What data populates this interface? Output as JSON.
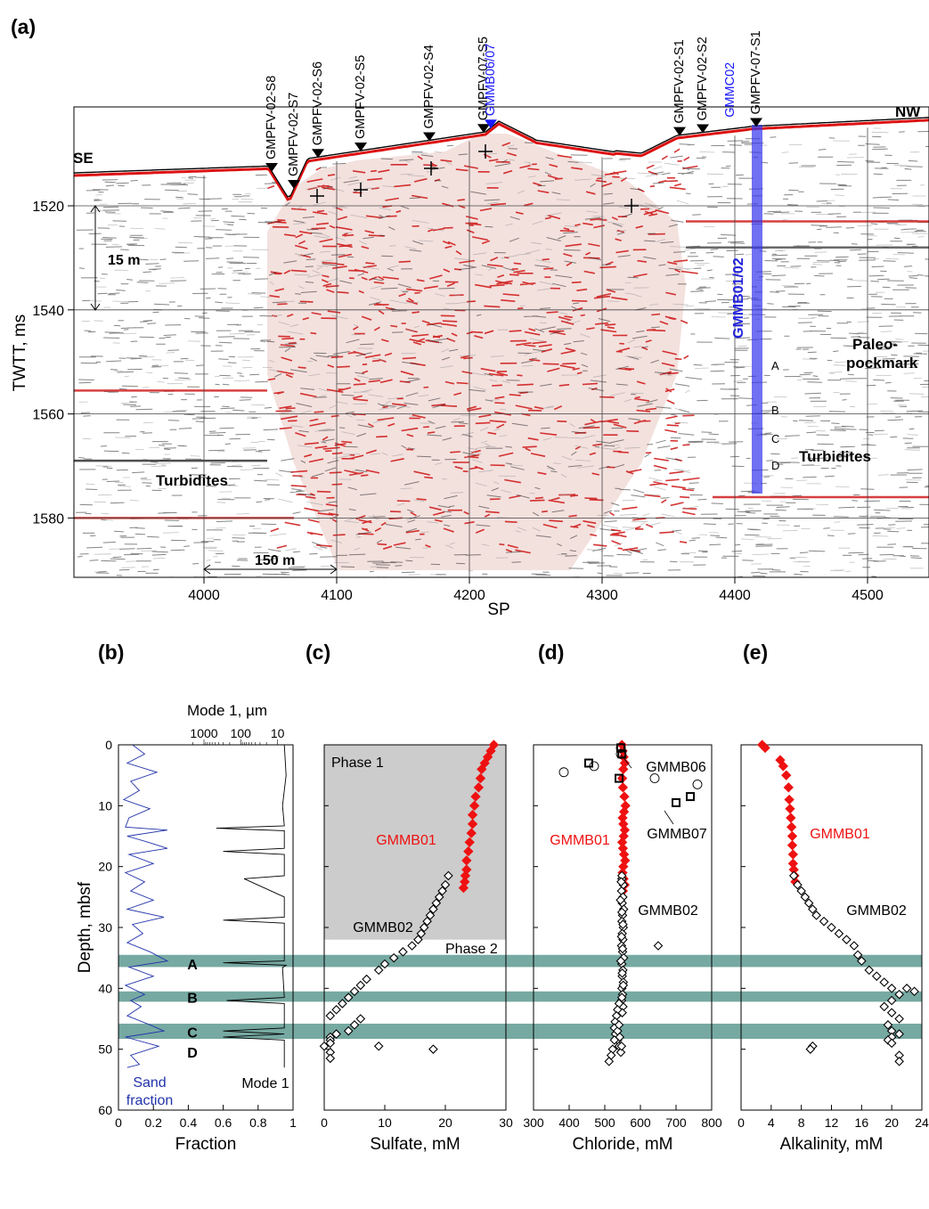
{
  "panels": {
    "a": "(a)",
    "b": "(b)",
    "c": "(c)",
    "d": "(d)",
    "e": "(e)"
  },
  "section": {
    "ylabel": "TWTT, ms",
    "xlabel": "SP",
    "yticks": [
      "1520",
      "1540",
      "1560",
      "1580"
    ],
    "xticks": [
      "4000",
      "4100",
      "4200",
      "4300",
      "4400",
      "4500"
    ],
    "left_label": "SE",
    "right_label": "NW",
    "scale_v": "15 m",
    "scale_h": "150 m",
    "turbidites_left": "Turbidites",
    "turbidites_right": "Turbidites",
    "paleo_1": "Paleo-",
    "paleo_2": "pockmark",
    "core_label": "GMMB01/02",
    "core_color": "#3333ee",
    "horizons": [
      "A",
      "B",
      "C",
      "D"
    ],
    "stations": [
      {
        "name": "GMPFV-02-S8",
        "color": "#000000"
      },
      {
        "name": "GMPFV-02-S7",
        "color": "#000000"
      },
      {
        "name": "GMPFV-02-S6",
        "color": "#000000"
      },
      {
        "name": "GMPFV-02-S5",
        "color": "#000000"
      },
      {
        "name": "GMPFV-02-S4",
        "color": "#000000"
      },
      {
        "name": "GMPFV-07-S5",
        "color": "#000000"
      },
      {
        "name": "GMMB06/07",
        "color": "#1a1aff"
      },
      {
        "name": "GMPFV-02-S1",
        "color": "#000000"
      },
      {
        "name": "GMPFV-02-S2",
        "color": "#000000"
      },
      {
        "name": "GMMC02",
        "color": "#1a1aff"
      },
      {
        "name": "GMPFV-07-S1",
        "color": "#000000"
      }
    ]
  },
  "labels": {
    "depth_axis": "Depth, mbsf",
    "mode_axis": "Mode 1, µm",
    "mode_ticks": [
      "1000",
      "100",
      "10"
    ],
    "sand1": "Sand",
    "sand2": "fraction",
    "mode1": "Mode 1",
    "phase1": "Phase 1",
    "phase2": "Phase 2",
    "gmmb01": "GMMB01",
    "gmmb02": "GMMB02",
    "gmmb06": "GMMB06",
    "gmmb07": "GMMB07",
    "bands": [
      "A",
      "B",
      "C",
      "D"
    ]
  },
  "colors": {
    "red": "#ee1111",
    "band": "#5e9a92",
    "phase1_fill": "#cccccc",
    "sand_line": "#2233aa"
  },
  "chart_data": [
    {
      "type": "line",
      "panel": "b",
      "xlabel": "Fraction",
      "ylabel": "Depth, mbsf",
      "xlim": [
        0,
        1
      ],
      "ylim": [
        60,
        0
      ],
      "xticks": [
        "0",
        "0.2",
        "0.4",
        "0.6",
        "0.8",
        "1"
      ],
      "yticks": [
        "0",
        "10",
        "20",
        "30",
        "40",
        "50",
        "60"
      ],
      "series": [
        {
          "name": "Sand fraction",
          "depth": [
            0,
            1.5,
            3,
            4.5,
            6,
            7.5,
            9,
            10.5,
            12,
            13.5,
            14,
            15,
            16,
            17,
            18,
            19.5,
            21,
            22.5,
            24,
            25.5,
            27,
            28.3,
            29.5,
            31,
            32.5,
            34,
            35.5,
            36.5,
            38,
            39.5,
            41,
            42,
            43,
            44.5,
            46,
            47,
            48,
            49.5,
            51,
            52.5,
            53
          ],
          "values": [
            0.08,
            0.15,
            0.05,
            0.22,
            0.07,
            0.12,
            0.03,
            0.18,
            0.06,
            0.04,
            0.28,
            0.05,
            0.17,
            0.28,
            0.06,
            0.2,
            0.04,
            0.15,
            0.07,
            0.2,
            0.05,
            0.26,
            0.08,
            0.14,
            0.05,
            0.18,
            0.28,
            0.06,
            0.2,
            0.04,
            0.15,
            0.07,
            0.13,
            0.05,
            0.18,
            0.26,
            0.04,
            0.23,
            0.07,
            0.12,
            0.05
          ]
        },
        {
          "name": "Mode 1",
          "depth": [
            0,
            5,
            10,
            13.3,
            13.7,
            14.1,
            17,
            17.5,
            18,
            21.5,
            22,
            25,
            28.3,
            28.8,
            29.3,
            35.5,
            35.8,
            36.2,
            36.6,
            41.5,
            42,
            42.5,
            46.5,
            47,
            47.5,
            48,
            48.5,
            53
          ],
          "values": [
            0.95,
            0.96,
            0.94,
            0.95,
            0.56,
            0.95,
            0.95,
            0.6,
            0.95,
            0.95,
            0.72,
            0.95,
            0.95,
            0.6,
            0.95,
            0.95,
            0.6,
            0.96,
            0.94,
            0.95,
            0.62,
            0.95,
            0.95,
            0.6,
            0.95,
            0.6,
            0.95,
            0.95
          ]
        }
      ]
    },
    {
      "type": "scatter",
      "panel": "c",
      "xlabel": "Sulfate, mM",
      "xlim": [
        0,
        30
      ],
      "ylim": [
        60,
        0
      ],
      "xticks": [
        "0",
        "10",
        "20",
        "30"
      ],
      "series": [
        {
          "name": "GMMB01",
          "x": [
            28,
            27.5,
            27,
            26.5,
            26,
            25.8,
            25.5,
            25,
            24.8,
            24.5,
            24.5,
            24.3,
            24,
            23.8,
            23.5,
            23.5,
            23.3,
            23.2,
            23
          ],
          "depth": [
            0,
            1,
            2,
            3,
            4,
            5.5,
            7,
            8.5,
            10,
            11.5,
            13,
            14.5,
            16,
            17.5,
            19,
            20.5,
            21.5,
            22.5,
            23.5
          ]
        },
        {
          "name": "GMMB02",
          "x": [
            20.5,
            20,
            19.5,
            19,
            18.5,
            18,
            17.5,
            17,
            16.5,
            16,
            15.5,
            14.5,
            13,
            11.5,
            10,
            9,
            7,
            6,
            5,
            4,
            3,
            2,
            1,
            6,
            5,
            4,
            2,
            1,
            1,
            1,
            0,
            1,
            1,
            9,
            18
          ],
          "depth": [
            21.5,
            23,
            24,
            25,
            26,
            27,
            28,
            29,
            30,
            31,
            32,
            33,
            34,
            35,
            36,
            37,
            38.5,
            39.5,
            40.5,
            41.5,
            42.5,
            43.5,
            44.5,
            45,
            46,
            47,
            47.5,
            48,
            48.5,
            49,
            49.5,
            50.5,
            51.5,
            49.5,
            50
          ]
        }
      ]
    },
    {
      "type": "scatter",
      "panel": "d",
      "xlabel": "Chloride, mM",
      "xlim": [
        300,
        800
      ],
      "ylim": [
        60,
        0
      ],
      "xticks": [
        "300",
        "400",
        "500",
        "600",
        "700",
        "800"
      ],
      "series": [
        {
          "name": "GMMB01",
          "x": [
            548,
            550,
            553,
            556,
            552,
            549,
            551,
            555,
            558,
            554,
            550,
            552,
            556,
            553,
            549,
            551,
            554,
            557,
            552,
            550,
            553,
            556,
            551
          ],
          "depth": [
            0,
            1,
            2,
            3,
            4,
            5.5,
            7,
            8.5,
            10,
            11,
            12,
            13,
            14,
            15,
            16,
            17,
            18,
            19,
            20,
            21,
            22,
            23,
            24
          ]
        },
        {
          "name": "GMMB02",
          "x": [
            548,
            552,
            547,
            551,
            549,
            553,
            550,
            548,
            552,
            549,
            551,
            547,
            550,
            553,
            548,
            551,
            549,
            552,
            548,
            550,
            547,
            551,
            549,
            548,
            546,
            544,
            548,
            551,
            547,
            550,
            545,
            549,
            552,
            548,
            540,
            536,
            533,
            529,
            527,
            530,
            536,
            540,
            545,
            536,
            542,
            547,
            527,
            522,
            518,
            512,
            540,
            650
          ],
          "depth": [
            22,
            23,
            24,
            25,
            26,
            27,
            28,
            29,
            30,
            31,
            32,
            33,
            34,
            35,
            36,
            37,
            38,
            39,
            40,
            41,
            42,
            43,
            44,
            21.5,
            22.5,
            25.5,
            27.5,
            29.5,
            31.5,
            33.5,
            35.5,
            37.5,
            39.5,
            41.5,
            42.5,
            43.5,
            44.5,
            45.5,
            46.5,
            47.5,
            48.5,
            49.5,
            50.5,
            47,
            48,
            49.5,
            48.5,
            50,
            51,
            52,
            46,
            33
          ]
        },
        {
          "name": "GMMB06",
          "x": [
            385,
            470,
            545,
            545,
            640,
            760
          ],
          "depth": [
            4.5,
            3.5,
            0.5,
            1.5,
            5.5,
            6.5
          ]
        },
        {
          "name": "GMMB07",
          "x": [
            455,
            545,
            548,
            540,
            700,
            740
          ],
          "depth": [
            3,
            0.5,
            1.5,
            5.5,
            9.5,
            8.5
          ]
        }
      ]
    },
    {
      "type": "scatter",
      "panel": "e",
      "xlabel": "Alkalinity, mM",
      "xlim": [
        0,
        24
      ],
      "ylim": [
        60,
        0
      ],
      "xticks": [
        "0",
        "4",
        "8",
        "12",
        "16",
        "20",
        "24"
      ],
      "series": [
        {
          "name": "GMMB01",
          "x": [
            2.8,
            3.2,
            5.2,
            5.6,
            6,
            6.3,
            6.4,
            6.5,
            6.6,
            6.7,
            6.8,
            6.8,
            6.9,
            6.9,
            7,
            7.1,
            7.2
          ],
          "depth": [
            0,
            0.5,
            2.5,
            3.5,
            5,
            7,
            9,
            10.5,
            12,
            13.5,
            15,
            16.5,
            18,
            19.5,
            20.5,
            21.5,
            22.5
          ]
        },
        {
          "name": "GMMB02",
          "x": [
            7,
            7.5,
            8,
            8.5,
            9,
            9.5,
            10,
            11,
            12,
            13,
            14,
            15,
            15.5,
            16,
            17,
            18,
            19,
            20,
            21,
            22,
            23,
            20,
            19,
            20,
            21,
            19.5,
            20,
            21,
            20,
            19.5,
            20,
            9.5,
            9.2,
            21,
            21
          ],
          "depth": [
            21.5,
            23,
            24,
            25,
            26,
            27,
            28,
            29,
            30,
            31,
            32,
            33,
            34.5,
            35.5,
            37,
            38,
            39,
            40,
            41,
            40,
            40.5,
            42,
            43,
            44,
            45,
            46,
            47,
            47.5,
            48,
            48.5,
            49,
            49.5,
            50,
            51,
            52
          ]
        }
      ]
    }
  ]
}
